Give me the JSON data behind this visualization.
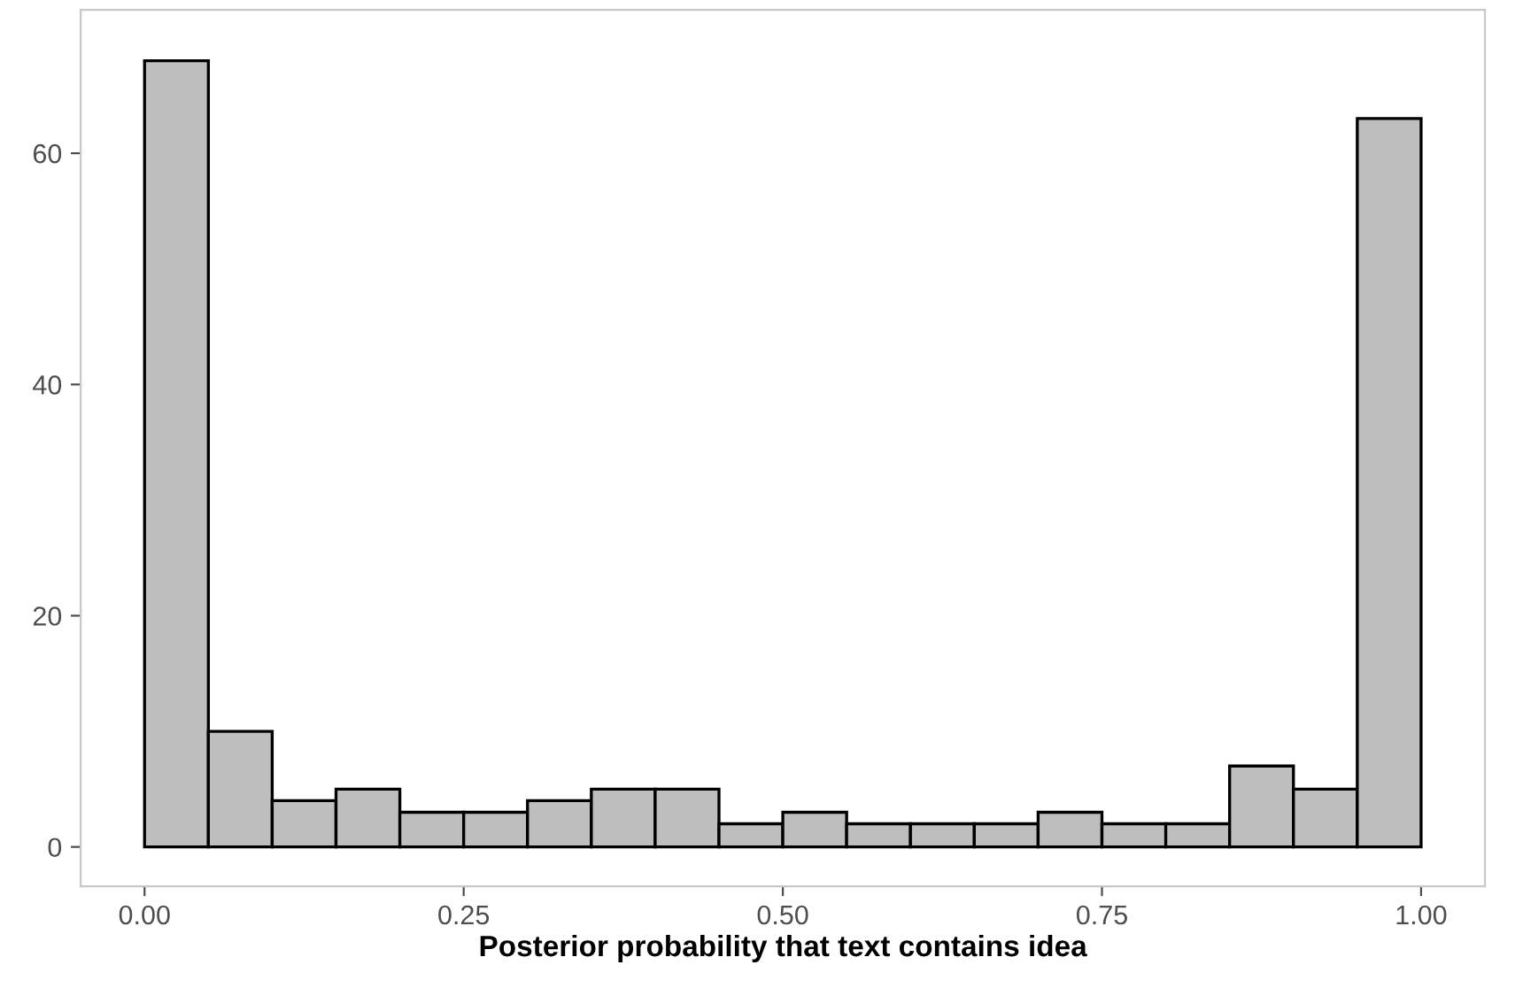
{
  "chart_data": {
    "type": "histogram",
    "xlabel": "Posterior probability that text contains idea",
    "bins": [
      0,
      0.05,
      0.1,
      0.15,
      0.2,
      0.25,
      0.3,
      0.35,
      0.4,
      0.45,
      0.5,
      0.55,
      0.6,
      0.65,
      0.7,
      0.75,
      0.8,
      0.85,
      0.9,
      0.95,
      1
    ],
    "values": [
      68,
      10,
      4,
      5,
      3,
      3,
      4,
      5,
      5,
      2,
      3,
      2,
      2,
      2,
      3,
      2,
      2,
      7,
      5,
      63
    ],
    "color": "#bebebe",
    "xlim": [
      -0.05,
      1.05
    ],
    "xticks": [
      {
        "value": 0,
        "label": "0.00"
      },
      {
        "value": 0.25,
        "label": "0.25"
      },
      {
        "value": 0.5,
        "label": "0.50"
      },
      {
        "value": 0.75,
        "label": "0.75"
      },
      {
        "value": 1,
        "label": "1.00"
      }
    ],
    "ylim": [
      -3.4,
      72.4
    ],
    "yticks": [
      0,
      20,
      40,
      60
    ],
    "grid": false,
    "legend": false
  }
}
